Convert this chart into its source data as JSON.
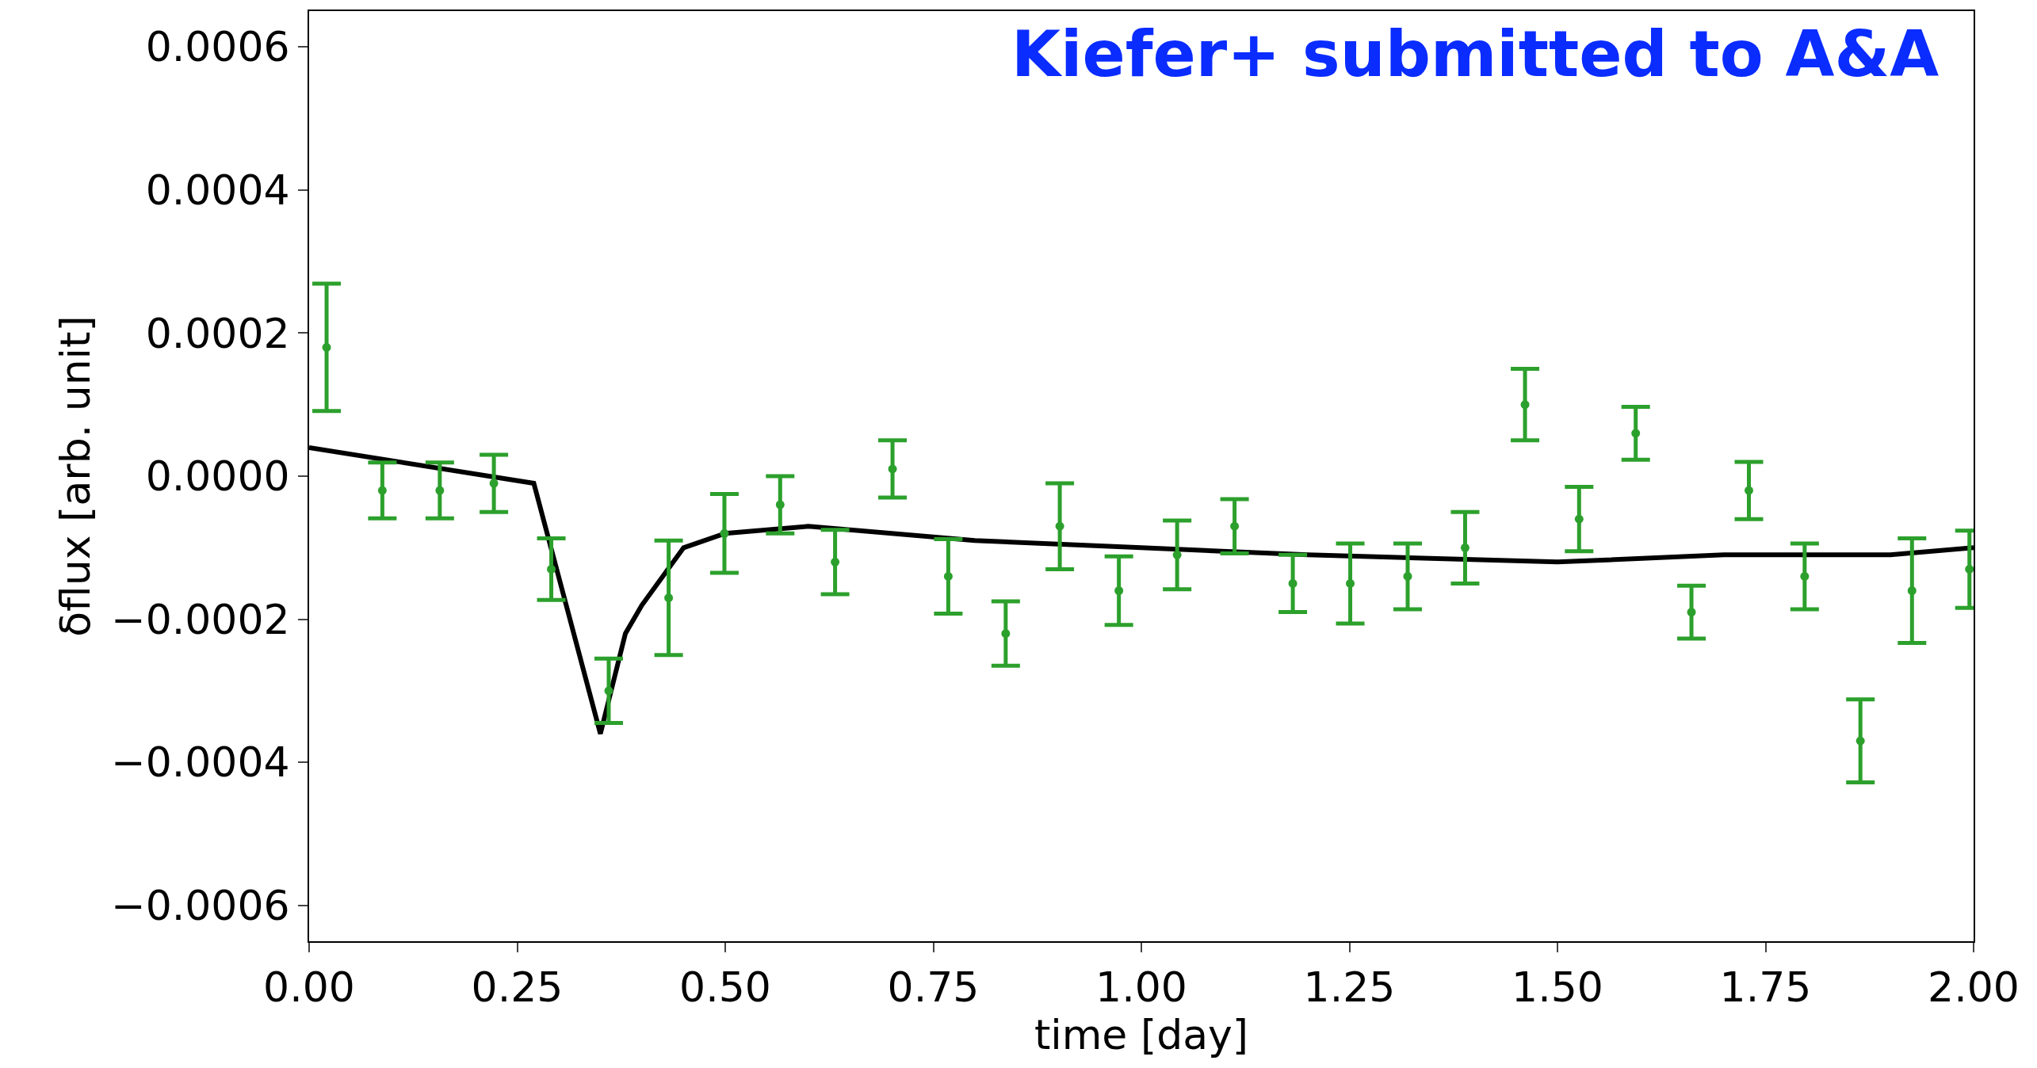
{
  "chart_data": {
    "type": "scatter",
    "xlabel": "time [day]",
    "ylabel": "δflux [arb. unit]",
    "annotations": [
      "Kiefer+ submitted to A&A"
    ],
    "xlim": [
      0,
      2
    ],
    "xticks": [
      {
        "value": 0,
        "label": "0.00"
      },
      {
        "value": 0.25,
        "label": "0.25"
      },
      {
        "value": 0.5,
        "label": "0.50"
      },
      {
        "value": 0.75,
        "label": "0.75"
      },
      {
        "value": 1,
        "label": "1.00"
      },
      {
        "value": 1.25,
        "label": "1.25"
      },
      {
        "value": 1.5,
        "label": "1.50"
      },
      {
        "value": 1.75,
        "label": "1.75"
      },
      {
        "value": 2,
        "label": "2.00"
      }
    ],
    "ylim": [
      -0.00065,
      0.00065
    ],
    "yticks": [
      {
        "value": -0.0006,
        "label": "−0.0006"
      },
      {
        "value": -0.0004,
        "label": "−0.0004"
      },
      {
        "value": -0.0002,
        "label": "−0.0002"
      },
      {
        "value": 0,
        "label": "0.0000"
      },
      {
        "value": 0.0002,
        "label": "0.0002"
      },
      {
        "value": 0.0004,
        "label": "0.0004"
      },
      {
        "value": 0.0006,
        "label": "0.0006"
      }
    ],
    "grid": false,
    "marker": "circle",
    "series": [
      {
        "color": "#2ca02c",
        "x": [
          0.021,
          0.088,
          0.157,
          0.222,
          0.291,
          0.36,
          0.432,
          0.499,
          0.566,
          0.632,
          0.701,
          0.768,
          0.837,
          0.902,
          0.973,
          1.043,
          1.112,
          1.182,
          1.251,
          1.32,
          1.389,
          1.461,
          1.526,
          1.594,
          1.661,
          1.73,
          1.797,
          1.864,
          1.926,
          1.995
        ],
        "values": [
          0.00018,
          -2e-05,
          -2e-05,
          -1e-05,
          -0.00013,
          -0.0003,
          -0.00017,
          -8e-05,
          -4e-05,
          -0.00012,
          1e-05,
          -0.00014,
          -0.00022,
          -7e-05,
          -0.00016,
          -0.00011,
          -7e-05,
          -0.00015,
          -0.00015,
          -0.00014,
          -0.0001,
          0.0001,
          -6e-05,
          6e-05,
          -0.00019,
          -2e-05,
          -0.00014,
          -0.00037,
          -0.00016,
          -0.00013
        ],
        "errors": [
          8.9e-05,
          3.9e-05,
          3.9e-05,
          4e-05,
          4.3e-05,
          4.5e-05,
          8e-05,
          5.5e-05,
          4e-05,
          4.5e-05,
          4e-05,
          5.2e-05,
          4.5e-05,
          6e-05,
          4.8e-05,
          4.8e-05,
          3.8e-05,
          4e-05,
          5.6e-05,
          4.6e-05,
          5e-05,
          5e-05,
          4.5e-05,
          3.7e-05,
          3.7e-05,
          4e-05,
          4.6e-05,
          5.8e-05,
          7.3e-05,
          5.4e-05
        ]
      },
      {
        "type": "line",
        "color": "#000000",
        "marker": "none",
        "x": [
          0,
          0.27,
          0.35,
          0.38,
          0.4,
          0.45,
          0.5,
          0.6,
          0.7,
          0.8,
          1.0,
          1.2,
          1.5,
          1.7,
          1.9,
          2.0
        ],
        "values": [
          4e-05,
          -1e-05,
          -0.00036,
          -0.00022,
          -0.00018,
          -0.0001,
          -8e-05,
          -7e-05,
          -8e-05,
          -9e-05,
          -0.0001,
          -0.00011,
          -0.00012,
          -0.00011,
          -0.00011,
          -0.0001
        ]
      }
    ]
  }
}
